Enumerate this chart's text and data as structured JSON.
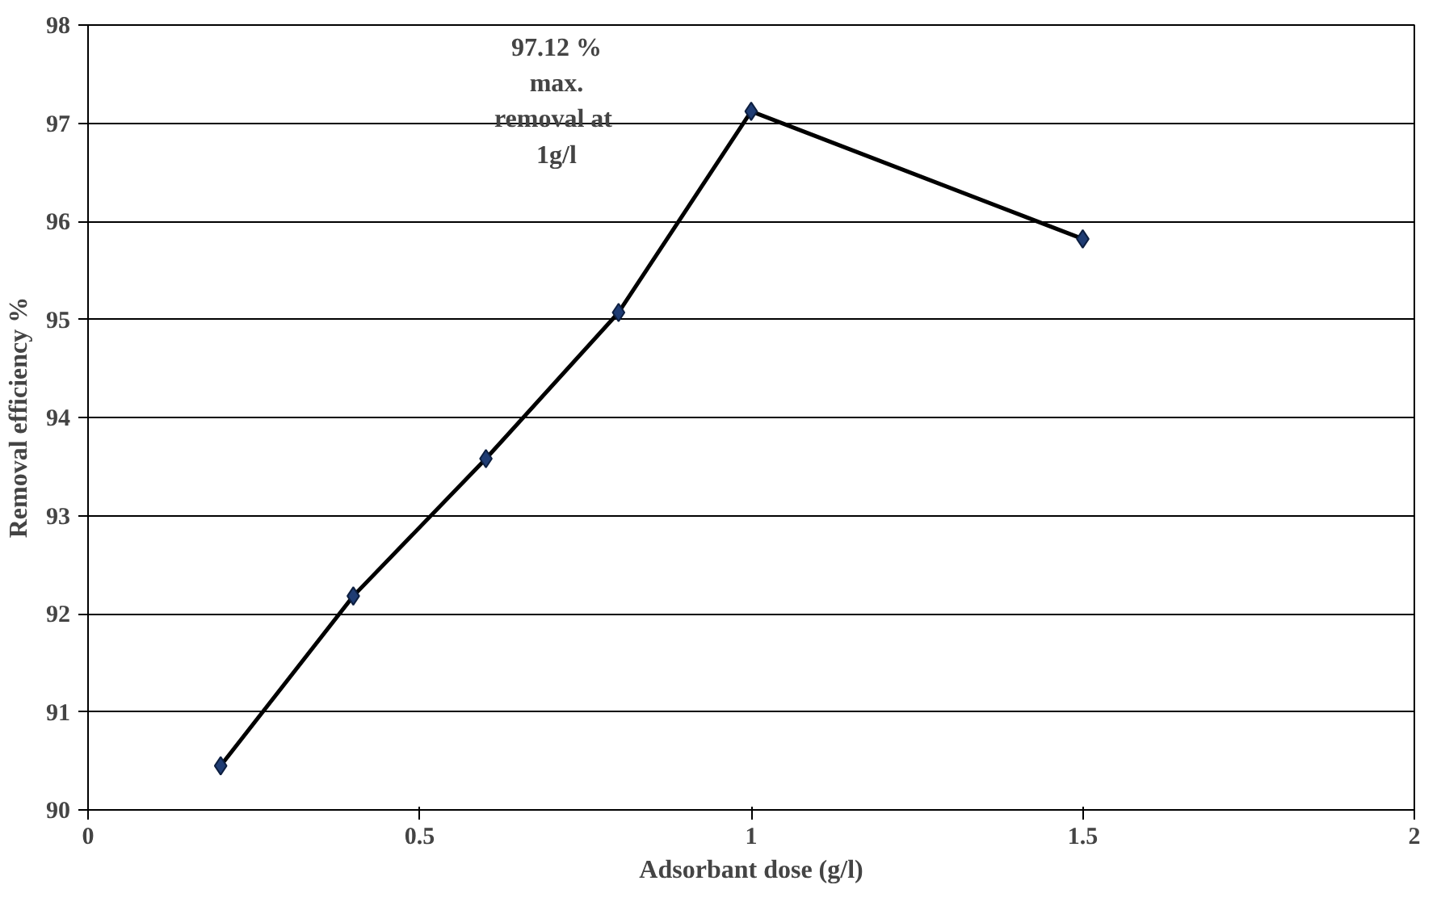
{
  "chart_data": {
    "type": "line",
    "xlabel": "Adsorbant dose (g/l)",
    "ylabel": "Removal efficiency %",
    "x": [
      0.2,
      0.4,
      0.6,
      0.8,
      1.0,
      1.5
    ],
    "series": [
      {
        "color": "#000000",
        "values": [
          90.45,
          92.18,
          93.58,
          95.07,
          97.12,
          95.82
        ]
      }
    ],
    "marker": "diamond",
    "line_style": "solid",
    "grid": "y",
    "xlim": [
      0,
      2
    ],
    "xticks": [
      0,
      0.5,
      1,
      1.5,
      2
    ],
    "ylim": [
      90,
      98
    ],
    "yticks": [
      90,
      91,
      92,
      93,
      94,
      95,
      96,
      97,
      98
    ],
    "annotations": [
      "97.12 %\nmax.\nremoval  at\n1g/l"
    ]
  }
}
